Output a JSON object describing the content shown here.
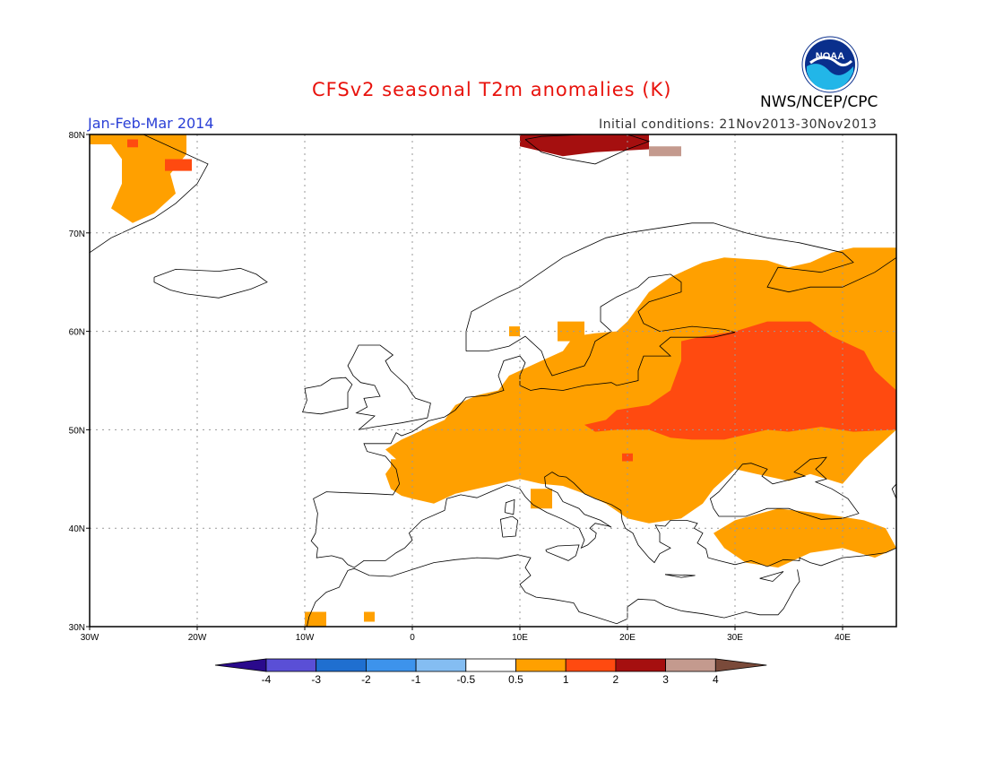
{
  "header": {
    "title": "CFSv2 seasonal T2m anomalies (K)",
    "period": "Jan-Feb-Mar 2014",
    "initial_conditions": "Initial conditions: 21Nov2013-30Nov2013",
    "agency": "NWS/NCEP/CPC",
    "logo_text": "NOAA"
  },
  "axes": {
    "lon_labels": [
      "30W",
      "20W",
      "10W",
      "0",
      "10E",
      "20E",
      "30E",
      "40E"
    ],
    "lat_labels": [
      "80N",
      "70N",
      "60N",
      "50N",
      "40N",
      "30N"
    ]
  },
  "colorbar": {
    "ticks": [
      "-4",
      "-3",
      "-2",
      "-1",
      "-0.5",
      "0.5",
      "1",
      "2",
      "3",
      "4"
    ],
    "colors": [
      "#2a0a8c",
      "#5a4fd6",
      "#1f6fd0",
      "#3d93ec",
      "#84bdf2",
      "#ffffff",
      "#ffa000",
      "#ff4a10",
      "#a50f0f",
      "#c49a8e",
      "#7a4a3a"
    ]
  },
  "anomaly_regions": [
    {
      "name": "Greenland east coast",
      "level": "0.5-1",
      "color": "#ffa000"
    },
    {
      "name": "Greenland northeast patch",
      "level": "1-2",
      "color": "#ff4a10"
    },
    {
      "name": "Svalbard",
      "level": "2-3",
      "color": "#a50f0f"
    },
    {
      "name": "Svalbard east",
      "level": "3-4",
      "color": "#c49a8e"
    },
    {
      "name": "Northwest Russia / Finland",
      "level": "0.5-1",
      "color": "#ffa000"
    },
    {
      "name": "Central and eastern Europe",
      "level": "0.5-1",
      "color": "#ffa000"
    },
    {
      "name": "Poland, Belarus, Ukraine, western Russia",
      "level": "1-2",
      "color": "#ff4a10"
    },
    {
      "name": "Anatolia / Black Sea coast",
      "level": "0.5-1",
      "color": "#ffa000"
    },
    {
      "name": "Southwest Iberia / Morocco",
      "level": "0.5-1",
      "color": "#ffa000"
    }
  ]
}
